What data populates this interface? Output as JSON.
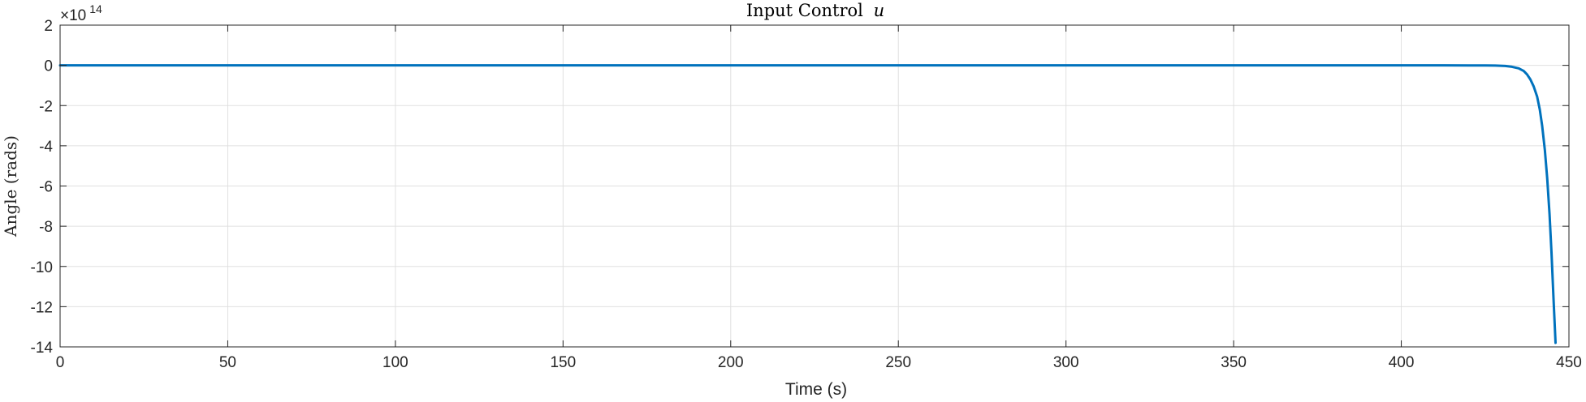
{
  "chart_data": {
    "type": "line",
    "title": "Input Control",
    "title_var": "u",
    "xlabel": "Time (s)",
    "ylabel": "Angle (rads)",
    "y_exponent_base": "×10",
    "y_exponent_power": "14",
    "xlim": [
      0,
      450
    ],
    "ylim": [
      -14,
      2
    ],
    "y_scale_factor": 100000000000000.0,
    "xticks": [
      0,
      50,
      100,
      150,
      200,
      250,
      300,
      350,
      400,
      450
    ],
    "yticks": [
      2,
      0,
      -2,
      -4,
      -6,
      -8,
      -10,
      -12,
      -14
    ],
    "grid": true,
    "series": [
      {
        "color": "#0072BD",
        "x": [
          0,
          50,
          100,
          150,
          200,
          250,
          300,
          350,
          400,
          420,
          425,
          428,
          431,
          433,
          435,
          436.5,
          437.5,
          438.5,
          439.5,
          440.5,
          441.3,
          442,
          442.8,
          443.5,
          444.2,
          444.8,
          445.4,
          446
        ],
        "y": [
          0,
          0,
          0,
          0,
          0,
          0,
          0,
          0,
          0,
          -0.002,
          -0.005,
          -0.01,
          -0.03,
          -0.07,
          -0.15,
          -0.28,
          -0.45,
          -0.7,
          -1.05,
          -1.55,
          -2.2,
          -3.0,
          -4.2,
          -5.6,
          -7.4,
          -9.3,
          -11.6,
          -13.8
        ]
      }
    ]
  }
}
